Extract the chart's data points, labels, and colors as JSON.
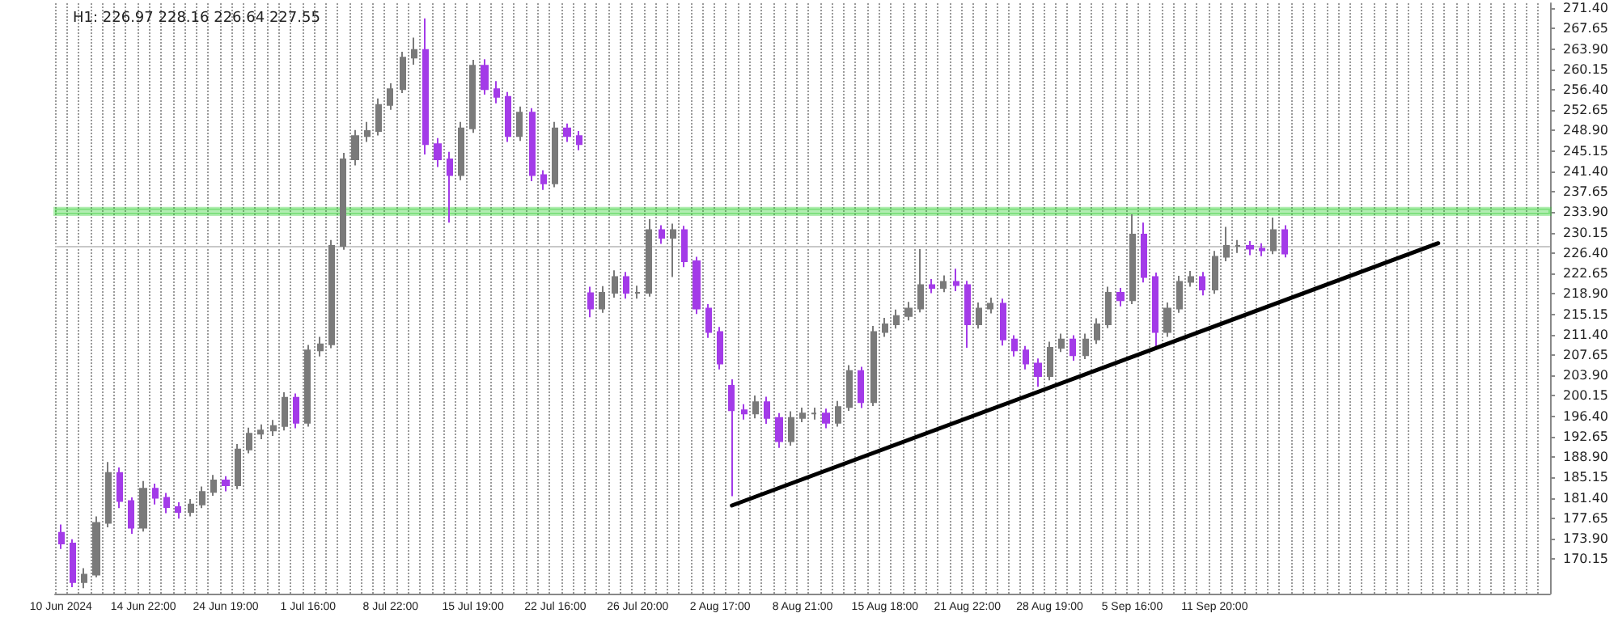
{
  "chart_data": {
    "type": "candlestick",
    "title": "H1: 226.97 228.16 226.64 227.55",
    "categories": [
      "10 Jun 2024",
      null,
      null,
      null,
      null,
      null,
      null,
      "14 Jun 22:00",
      null,
      null,
      null,
      null,
      null,
      null,
      "24 Jun 19:00",
      null,
      null,
      null,
      null,
      null,
      null,
      "1 Jul 16:00",
      null,
      null,
      null,
      null,
      null,
      null,
      "8 Jul 22:00",
      null,
      null,
      null,
      null,
      null,
      null,
      "15 Jul 19:00",
      null,
      null,
      null,
      null,
      null,
      null,
      "22 Jul 16:00",
      null,
      null,
      null,
      null,
      null,
      null,
      "26 Jul 20:00",
      null,
      null,
      null,
      null,
      null,
      null,
      "2 Aug 17:00",
      null,
      null,
      null,
      null,
      null,
      null,
      "8 Aug 21:00",
      null,
      null,
      null,
      null,
      null,
      null,
      "15 Aug 18:00",
      null,
      null,
      null,
      null,
      null,
      null,
      "21 Aug 22:00",
      null,
      null,
      null,
      null,
      null,
      null,
      "28 Aug 19:00",
      null,
      null,
      null,
      null,
      null,
      null,
      "5 Sep 16:00",
      null,
      null,
      null,
      null,
      null,
      null,
      "11 Sep 20:00",
      null,
      null,
      null,
      null,
      null,
      null,
      null,
      null,
      null,
      null,
      null,
      null,
      null,
      null,
      null,
      null,
      null,
      null,
      null,
      null,
      null,
      null,
      null,
      null,
      null,
      null,
      null,
      null
    ],
    "ohlc": [
      [
        175.0,
        176.5,
        172.0,
        173.0
      ],
      [
        173.0,
        173.8,
        165.0,
        165.9
      ],
      [
        165.9,
        168.5,
        164.8,
        167.3
      ],
      [
        167.3,
        178.0,
        166.8,
        176.8
      ],
      [
        176.8,
        188.0,
        176.0,
        186.0
      ],
      [
        186.0,
        187.0,
        179.5,
        180.8
      ],
      [
        180.8,
        181.5,
        174.8,
        175.9
      ],
      [
        175.9,
        184.5,
        175.2,
        183.1
      ],
      [
        183.1,
        184.0,
        180.2,
        181.4
      ],
      [
        181.4,
        182.3,
        178.6,
        179.7
      ],
      [
        179.7,
        180.6,
        177.6,
        178.8
      ],
      [
        178.8,
        181.2,
        178.0,
        180.2
      ],
      [
        180.2,
        183.5,
        179.5,
        182.5
      ],
      [
        182.5,
        185.6,
        181.8,
        184.6
      ],
      [
        184.6,
        185.4,
        182.6,
        183.7
      ],
      [
        183.7,
        191.3,
        183.0,
        190.3
      ],
      [
        190.3,
        194.3,
        189.6,
        193.2
      ],
      [
        193.2,
        194.9,
        192.2,
        193.8
      ],
      [
        193.8,
        195.7,
        192.8,
        194.6
      ],
      [
        194.6,
        200.8,
        193.8,
        199.8
      ],
      [
        199.8,
        200.6,
        194.2,
        195.2
      ],
      [
        195.2,
        209.5,
        194.5,
        208.5
      ],
      [
        208.5,
        211.0,
        207.4,
        209.6
      ],
      [
        209.6,
        228.8,
        208.9,
        227.7
      ],
      [
        227.7,
        244.8,
        227.0,
        243.6
      ],
      [
        243.6,
        249.0,
        242.5,
        247.9
      ],
      [
        247.9,
        250.5,
        246.8,
        248.8
      ],
      [
        248.8,
        254.8,
        248.0,
        253.6
      ],
      [
        253.6,
        257.6,
        252.7,
        256.5
      ],
      [
        256.5,
        263.4,
        255.8,
        262.3
      ],
      [
        262.3,
        266.0,
        261.0,
        263.7
      ],
      [
        263.7,
        269.5,
        244.5,
        246.4
      ],
      [
        246.4,
        247.5,
        242.2,
        243.6
      ],
      [
        243.6,
        245.0,
        232.0,
        240.7
      ],
      [
        240.7,
        250.5,
        239.8,
        249.3
      ],
      [
        249.3,
        261.9,
        248.5,
        260.8
      ],
      [
        260.8,
        262.0,
        255.5,
        256.5
      ],
      [
        256.5,
        258.0,
        253.9,
        255.1
      ],
      [
        255.1,
        256.0,
        246.8,
        247.9
      ],
      [
        247.9,
        253.3,
        247.0,
        252.2
      ],
      [
        252.2,
        253.0,
        239.6,
        240.7
      ],
      [
        240.7,
        241.6,
        238.0,
        239.2
      ],
      [
        239.2,
        250.5,
        238.5,
        249.3
      ],
      [
        249.3,
        250.2,
        246.8,
        247.9
      ],
      [
        247.9,
        248.8,
        245.3,
        246.4
      ],
      [
        219.0,
        220.2,
        214.6,
        216.2
      ],
      [
        216.2,
        220.3,
        215.4,
        219.1
      ],
      [
        219.1,
        223.2,
        218.2,
        222.0
      ],
      [
        222.0,
        222.9,
        218.0,
        219.1
      ],
      [
        219.1,
        220.4,
        218.0,
        219.1
      ],
      [
        219.1,
        232.6,
        218.4,
        230.6
      ],
      [
        230.6,
        231.5,
        228.1,
        229.2
      ],
      [
        229.2,
        231.8,
        222.0,
        230.6
      ],
      [
        230.6,
        231.4,
        223.8,
        224.9
      ],
      [
        224.9,
        225.7,
        215.2,
        216.2
      ],
      [
        216.2,
        217.0,
        210.8,
        211.9
      ],
      [
        211.9,
        212.8,
        205.0,
        206.1
      ],
      [
        202.0,
        203.2,
        181.7,
        197.5
      ],
      [
        197.5,
        198.6,
        195.8,
        196.9
      ],
      [
        196.9,
        200.2,
        196.0,
        199.0
      ],
      [
        199.0,
        200.0,
        195.0,
        196.1
      ],
      [
        196.1,
        197.0,
        190.6,
        191.8
      ],
      [
        191.8,
        197.3,
        191.0,
        196.1
      ],
      [
        196.1,
        198.0,
        195.3,
        196.9
      ],
      [
        196.9,
        198.0,
        195.8,
        196.9
      ],
      [
        196.9,
        197.8,
        194.2,
        195.2
      ],
      [
        195.2,
        199.2,
        194.5,
        198.1
      ],
      [
        198.1,
        205.8,
        197.4,
        204.7
      ],
      [
        204.7,
        205.5,
        197.9,
        199.0
      ],
      [
        199.0,
        213.0,
        198.3,
        211.9
      ],
      [
        211.9,
        214.5,
        211.0,
        213.3
      ],
      [
        213.3,
        216.0,
        212.5,
        214.8
      ],
      [
        214.8,
        217.4,
        214.0,
        216.2
      ],
      [
        216.2,
        227.1,
        215.5,
        220.5
      ],
      [
        220.5,
        221.6,
        219.0,
        220.0
      ],
      [
        220.0,
        222.3,
        219.2,
        221.1
      ],
      [
        221.1,
        223.5,
        219.4,
        220.5
      ],
      [
        220.5,
        221.3,
        209.0,
        213.3
      ],
      [
        213.3,
        217.3,
        212.5,
        216.2
      ],
      [
        216.2,
        218.2,
        215.3,
        217.1
      ],
      [
        217.1,
        218.0,
        209.4,
        210.5
      ],
      [
        210.5,
        211.3,
        207.4,
        208.5
      ],
      [
        208.5,
        209.3,
        205.0,
        206.1
      ],
      [
        206.1,
        207.0,
        201.8,
        203.8
      ],
      [
        203.8,
        210.1,
        203.0,
        209.0
      ],
      [
        209.0,
        211.6,
        208.2,
        210.5
      ],
      [
        210.5,
        211.3,
        206.6,
        207.6
      ],
      [
        207.6,
        211.6,
        206.9,
        210.5
      ],
      [
        210.5,
        214.4,
        209.7,
        213.3
      ],
      [
        213.3,
        220.2,
        212.6,
        219.1
      ],
      [
        219.1,
        220.0,
        216.6,
        217.7
      ],
      [
        217.7,
        233.5,
        217.0,
        229.8
      ],
      [
        229.8,
        232.0,
        221.0,
        222.0
      ],
      [
        222.0,
        222.8,
        209.0,
        211.9
      ],
      [
        211.9,
        217.3,
        211.0,
        216.2
      ],
      [
        216.2,
        222.2,
        215.4,
        221.1
      ],
      [
        221.1,
        223.1,
        220.2,
        222.0
      ],
      [
        222.0,
        222.9,
        218.6,
        219.7
      ],
      [
        219.7,
        226.8,
        218.9,
        225.7
      ],
      [
        225.7,
        231.2,
        224.9,
        227.7
      ],
      [
        227.7,
        228.8,
        226.4,
        227.7
      ],
      [
        227.7,
        228.6,
        226.0,
        227.2
      ],
      [
        227.2,
        228.2,
        225.8,
        226.9
      ],
      [
        226.9,
        232.9,
        226.2,
        230.6
      ],
      [
        230.6,
        231.5,
        225.6,
        226.3
      ],
      null,
      null,
      null,
      null,
      null,
      null,
      null,
      null,
      null,
      null,
      null,
      null,
      null,
      null,
      null,
      null,
      null,
      null,
      null,
      null,
      null,
      null
    ],
    "colors": [
      "#a33be8",
      "#a33be8",
      "#7a7a7a",
      "#7a7a7a",
      "#7a7a7a",
      "#a33be8",
      "#a33be8",
      "#7a7a7a",
      "#a33be8",
      "#a33be8",
      "#a33be8",
      "#7a7a7a",
      "#7a7a7a",
      "#7a7a7a",
      "#a33be8",
      "#7a7a7a",
      "#7a7a7a",
      "#7a7a7a",
      "#7a7a7a",
      "#7a7a7a",
      "#a33be8",
      "#7a7a7a",
      "#7a7a7a",
      "#7a7a7a",
      "#7a7a7a",
      "#7a7a7a",
      "#7a7a7a",
      "#7a7a7a",
      "#7a7a7a",
      "#7a7a7a",
      "#7a7a7a",
      "#a33be8",
      "#a33be8",
      "#a33be8",
      "#7a7a7a",
      "#7a7a7a",
      "#a33be8",
      "#a33be8",
      "#a33be8",
      "#7a7a7a",
      "#a33be8",
      "#a33be8",
      "#7a7a7a",
      "#a33be8",
      "#a33be8",
      "#a33be8",
      "#7a7a7a",
      "#7a7a7a",
      "#a33be8",
      "#7a7a7a",
      "#7a7a7a",
      "#a33be8",
      "#7a7a7a",
      "#a33be8",
      "#a33be8",
      "#a33be8",
      "#a33be8",
      "#a33be8",
      "#a33be8",
      "#7a7a7a",
      "#a33be8",
      "#a33be8",
      "#7a7a7a",
      "#7a7a7a",
      "#7a7a7a",
      "#a33be8",
      "#7a7a7a",
      "#7a7a7a",
      "#a33be8",
      "#7a7a7a",
      "#7a7a7a",
      "#7a7a7a",
      "#7a7a7a",
      "#7a7a7a",
      "#a33be8",
      "#7a7a7a",
      "#a33be8",
      "#a33be8",
      "#7a7a7a",
      "#7a7a7a",
      "#a33be8",
      "#a33be8",
      "#a33be8",
      "#a33be8",
      "#7a7a7a",
      "#7a7a7a",
      "#a33be8",
      "#7a7a7a",
      "#7a7a7a",
      "#7a7a7a",
      "#a33be8",
      "#7a7a7a",
      "#a33be8",
      "#a33be8",
      "#7a7a7a",
      "#7a7a7a",
      "#7a7a7a",
      "#a33be8",
      "#7a7a7a",
      "#7a7a7a",
      "#7a7a7a",
      "#a33be8",
      "#a33be8",
      "#7a7a7a",
      "#a33be8",
      null,
      null,
      null,
      null,
      null,
      null,
      null,
      null,
      null,
      null,
      null,
      null,
      null,
      null,
      null,
      null,
      null,
      null,
      null,
      null,
      null,
      null
    ],
    "series": [
      {
        "type": "line",
        "color": "#000000",
        "values": [
          null,
          null,
          null,
          null,
          null,
          null,
          null,
          null,
          null,
          null,
          null,
          null,
          null,
          null,
          null,
          null,
          null,
          null,
          null,
          null,
          null,
          null,
          null,
          null,
          null,
          null,
          null,
          null,
          null,
          null,
          null,
          null,
          null,
          null,
          null,
          null,
          null,
          null,
          null,
          null,
          null,
          null,
          null,
          null,
          null,
          null,
          null,
          null,
          null,
          null,
          null,
          null,
          null,
          null,
          null,
          null,
          null,
          180.0,
          null,
          null,
          null,
          null,
          null,
          null,
          null,
          null,
          null,
          null,
          null,
          null,
          null,
          null,
          null,
          null,
          null,
          null,
          null,
          null,
          null,
          null,
          null,
          null,
          null,
          null,
          null,
          null,
          null,
          null,
          null,
          null,
          null,
          null,
          null,
          null,
          null,
          null,
          null,
          null,
          null,
          null,
          null,
          null,
          null,
          null,
          null,
          null,
          null,
          null,
          null,
          null,
          null,
          null,
          null,
          null,
          null,
          null,
          null,
          228.2,
          null,
          null,
          null,
          null,
          null,
          null,
          null,
          null,
          null
        ]
      }
    ],
    "bands": [
      {
        "axis": "y",
        "from": 233.5,
        "to": 234.6,
        "color": "#22cc22"
      }
    ],
    "ref_lines": [
      {
        "axis": "y",
        "value": 227.55,
        "color": "#c8c8c8"
      }
    ],
    "ylim": [
      163.8,
      272.3
    ],
    "yticks": [
      {
        "value": 170.15,
        "label": "170.15"
      },
      {
        "value": 173.9,
        "label": "173.90"
      },
      {
        "value": 177.65,
        "label": "177.65"
      },
      {
        "value": 181.4,
        "label": "181.40"
      },
      {
        "value": 185.15,
        "label": "185.15"
      },
      {
        "value": 188.9,
        "label": "188.90"
      },
      {
        "value": 192.65,
        "label": "192.65"
      },
      {
        "value": 196.4,
        "label": "196.40"
      },
      {
        "value": 200.15,
        "label": "200.15"
      },
      {
        "value": 203.9,
        "label": "203.90"
      },
      {
        "value": 207.65,
        "label": "207.65"
      },
      {
        "value": 211.4,
        "label": "211.40"
      },
      {
        "value": 215.15,
        "label": "215.15"
      },
      {
        "value": 218.9,
        "label": "218.90"
      },
      {
        "value": 222.65,
        "label": "222.65"
      },
      {
        "value": 226.4,
        "label": "226.40"
      },
      {
        "value": 230.15,
        "label": "230.15"
      },
      {
        "value": 233.9,
        "label": "233.90"
      },
      {
        "value": 237.65,
        "label": "237.65"
      },
      {
        "value": 241.4,
        "label": "241.40"
      },
      {
        "value": 245.15,
        "label": "245.15"
      },
      {
        "value": 248.9,
        "label": "248.90"
      },
      {
        "value": 252.65,
        "label": "252.65"
      },
      {
        "value": 256.4,
        "label": "256.40"
      },
      {
        "value": 260.15,
        "label": "260.15"
      },
      {
        "value": 263.9,
        "label": "263.90"
      },
      {
        "value": 267.65,
        "label": "267.65"
      },
      {
        "value": 271.4,
        "label": "271.40"
      }
    ],
    "grid": "x"
  }
}
